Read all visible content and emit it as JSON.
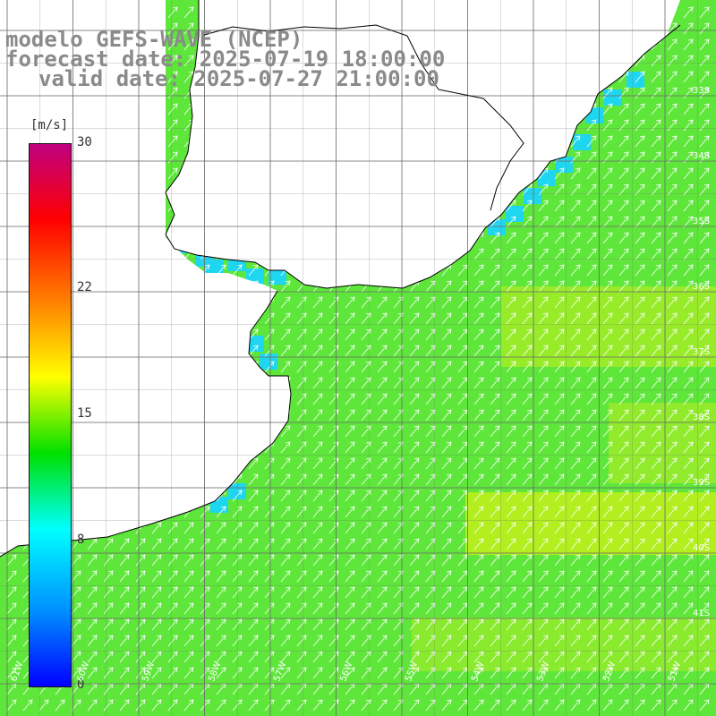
{
  "header": {
    "line1": "modelo GEFS-WAVE (NCEP)",
    "line2": "forecast date: 2025-07-19 18:00:00",
    "line3": "valid date: 2025-07-27 21:00:00"
  },
  "legend": {
    "unit": "[m/s]",
    "ticks": [
      {
        "value": 30,
        "label": "30"
      },
      {
        "value": 22,
        "label": "22"
      },
      {
        "value": 15,
        "label": "15"
      },
      {
        "value": 8,
        "label": "8"
      },
      {
        "value": 0,
        "label": "0"
      }
    ],
    "min": 0,
    "max": 30,
    "colors": [
      "#0000ff",
      "#0090ff",
      "#00ffff",
      "#00e000",
      "#ffff00",
      "#ff8000",
      "#ff0000",
      "#c00080"
    ]
  },
  "colors": {
    "land": "#ffffff",
    "grid": "#6e6e6e",
    "coast": "#000000",
    "arrow": "#ffffff"
  },
  "map": {
    "lat_labels": [
      "33S",
      "34S",
      "35S",
      "36S",
      "37S",
      "38S",
      "39S",
      "40S",
      "41S"
    ],
    "lon_labels": [
      "61W",
      "60W",
      "59W",
      "58W",
      "57W",
      "56W",
      "55W",
      "54W",
      "53W",
      "52W",
      "51W"
    ],
    "wind_direction": "towards north-east"
  }
}
